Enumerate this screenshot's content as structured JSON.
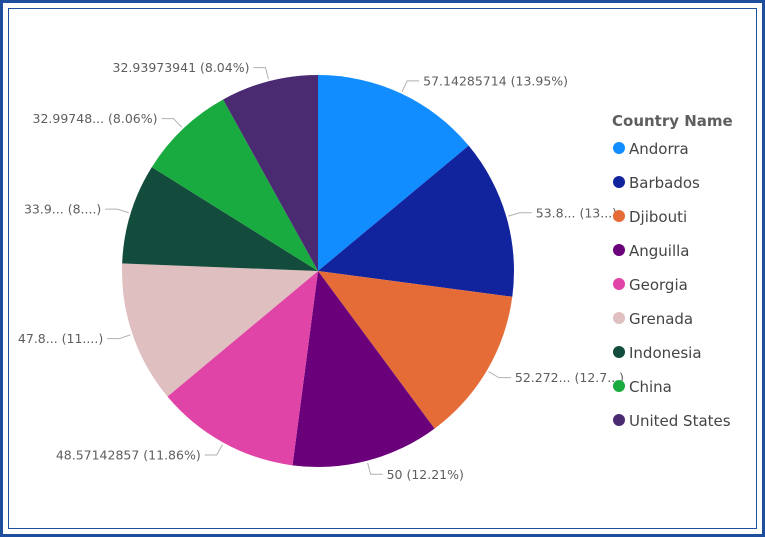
{
  "chart_data": {
    "type": "pie",
    "title": "",
    "legend_title": "Country Name",
    "legend_position": "right",
    "slices": [
      {
        "name": "Andorra",
        "value": 57.14285714,
        "label": "57.14285714 (13.95%)",
        "color": "#118dff"
      },
      {
        "name": "Barbados",
        "value": 53.8,
        "label": "53.8... (13...)",
        "color": "#12239e"
      },
      {
        "name": "Djibouti",
        "value": 52.272,
        "label": "52.272... (12.7...)",
        "color": "#e66c37"
      },
      {
        "name": "Anguilla",
        "value": 50,
        "label": "50 (12.21%)",
        "color": "#6b007b"
      },
      {
        "name": "Georgia",
        "value": 48.57142857,
        "label": "48.57142857 (11.86%)",
        "color": "#e044a7"
      },
      {
        "name": "Grenada",
        "value": 47.8,
        "label": "47.8... (11....)",
        "color": "#dfbfbf"
      },
      {
        "name": "Indonesia",
        "value": 33.9,
        "label": "33.9... (8....)",
        "color": "#134b3c"
      },
      {
        "name": "China",
        "value": 32.99748,
        "label": "32.99748... (8.06%)",
        "color": "#1aab40"
      },
      {
        "name": "United States",
        "value": 32.93973941,
        "label": "32.93973941 (8.04%)",
        "color": "#4a2b72"
      }
    ]
  }
}
